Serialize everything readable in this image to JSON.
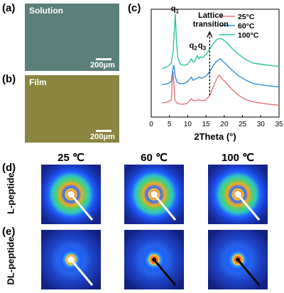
{
  "panels": {
    "a": {
      "label": "(a)",
      "tag": "Solution",
      "scale": "200μm",
      "color": "#5c7f7a"
    },
    "b": {
      "label": "(b)",
      "tag": "Film",
      "scale": "200μm",
      "color": "#8a8540"
    },
    "c": {
      "label": "(c)"
    },
    "d": {
      "label": "(d)",
      "row_label": "L-peptide"
    },
    "e": {
      "label": "(e)",
      "row_label": "DL-peptide"
    }
  },
  "temperatures": [
    "25 ℃",
    "60 ℃",
    "100 ℃"
  ],
  "chart_data": {
    "type": "line",
    "xlabel": "2Theta (°)",
    "xlim": [
      0,
      35
    ],
    "xticks": [
      "0",
      "5",
      "10",
      "15",
      "20",
      "25",
      "30",
      "35"
    ],
    "legend": [
      "25°C",
      "60°C",
      "100°C"
    ],
    "legend_position": "top-right",
    "annotations": {
      "q1": "q",
      "q1_sub": "1",
      "q2": "q",
      "q2_sub": "2",
      "q3": "q",
      "q3_sub": "3",
      "transition_line1": "Lattice",
      "transition_line2": "transition"
    },
    "series": [
      {
        "name": "25°C",
        "color": "#e8737a",
        "x": [
          3,
          4.5,
          5.5,
          5.8,
          6.0,
          6.2,
          6.5,
          7.0,
          8,
          9,
          10,
          11,
          11.5,
          12,
          13,
          14,
          15,
          16,
          17,
          18,
          18.6,
          19.5,
          20.5,
          22,
          24,
          26,
          28,
          30,
          32,
          35
        ],
        "y": [
          0.13,
          0.14,
          0.16,
          0.36,
          0.42,
          0.3,
          0.16,
          0.13,
          0.12,
          0.12,
          0.13,
          0.17,
          0.15,
          0.15,
          0.16,
          0.15,
          0.16,
          0.2,
          0.28,
          0.36,
          0.39,
          0.35,
          0.32,
          0.26,
          0.2,
          0.16,
          0.14,
          0.13,
          0.12,
          0.11
        ]
      },
      {
        "name": "60°C",
        "color": "#2e8fd9",
        "x": [
          3,
          4.5,
          5.5,
          5.9,
          6.2,
          6.6,
          7.2,
          8,
          9,
          10,
          11,
          11.5,
          12,
          13,
          14,
          15,
          16,
          17,
          18,
          19,
          19.5,
          20.5,
          22,
          24,
          26,
          28,
          30,
          32,
          35
        ],
        "y": [
          0.3,
          0.31,
          0.33,
          0.44,
          0.48,
          0.37,
          0.32,
          0.31,
          0.31,
          0.33,
          0.37,
          0.34,
          0.35,
          0.37,
          0.36,
          0.38,
          0.42,
          0.48,
          0.52,
          0.54,
          0.52,
          0.49,
          0.44,
          0.38,
          0.34,
          0.31,
          0.3,
          0.29,
          0.28
        ]
      },
      {
        "name": "100°C",
        "color": "#2ec4a0",
        "x": [
          3,
          4.5,
          5.5,
          6.0,
          6.4,
          6.6,
          6.9,
          7.3,
          8,
          9,
          10,
          11,
          11.5,
          12,
          12.6,
          13,
          13.6,
          14,
          15,
          16,
          17,
          18,
          19,
          20,
          21,
          22,
          24,
          26,
          28,
          30,
          32,
          35
        ],
        "y": [
          0.45,
          0.47,
          0.5,
          0.62,
          0.84,
          0.96,
          0.7,
          0.55,
          0.49,
          0.48,
          0.49,
          0.54,
          0.51,
          0.52,
          0.57,
          0.54,
          0.56,
          0.55,
          0.58,
          0.63,
          0.68,
          0.72,
          0.73,
          0.71,
          0.68,
          0.64,
          0.58,
          0.53,
          0.5,
          0.49,
          0.48,
          0.47
        ]
      }
    ]
  }
}
